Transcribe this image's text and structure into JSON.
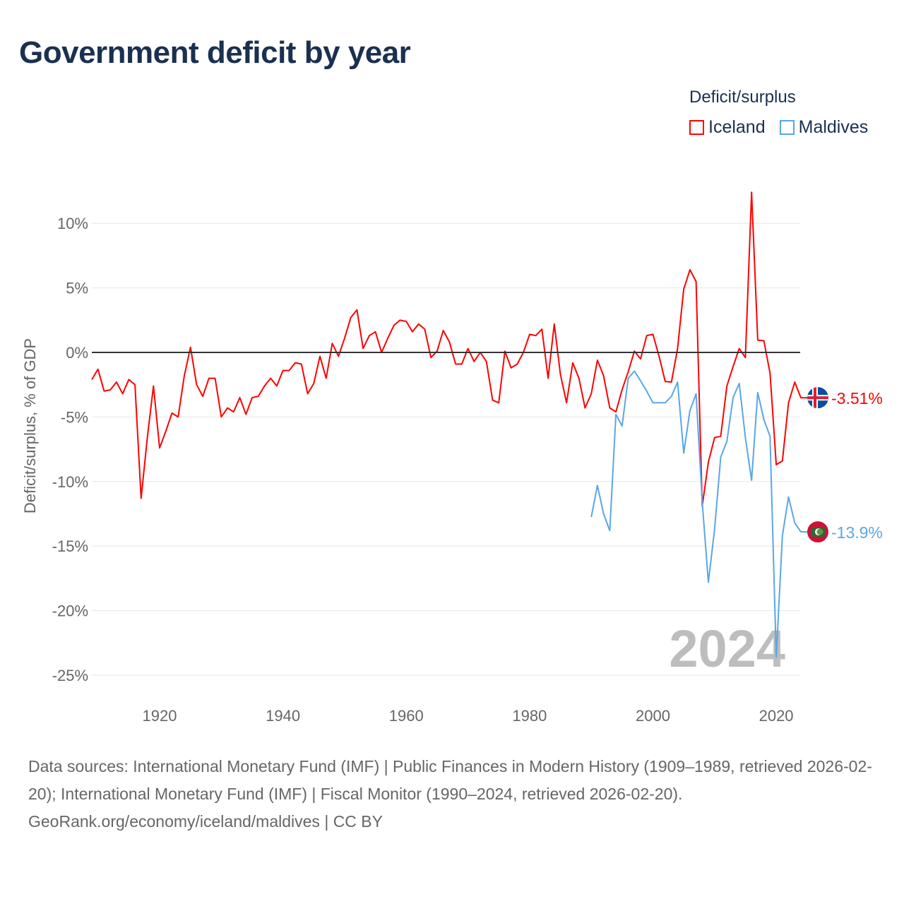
{
  "title": "Government deficit by year",
  "legend": {
    "title": "Deficit/surplus",
    "items": [
      {
        "label": "Iceland",
        "color": "#ff0000"
      },
      {
        "label": "Maldives",
        "color": "#5aa6e8"
      }
    ]
  },
  "footer": {
    "sources": "Data sources: International Monetary Fund (IMF) | Public Finances in Modern History (1909–1989, retrieved 2026-02-20); International Monetary Fund (IMF) | Fiscal Monitor (1990–2024, retrieved 2026-02-20).",
    "credit": "GeoRank.org/economy/iceland/maldives | CC BY"
  },
  "chart_data": {
    "type": "line",
    "title": "Government deficit by year",
    "ylabel": "Deficit/surplus, % of GDP",
    "xlabel": "",
    "xlim": [
      1909,
      2024
    ],
    "ylim": [
      -25,
      12.5
    ],
    "xticks": [
      1920,
      1940,
      1960,
      1980,
      2000,
      2020
    ],
    "yticks": [
      10,
      5,
      0,
      -5,
      -10,
      -15,
      -20,
      -25
    ],
    "ytick_labels": [
      "10%",
      "5%",
      "0%",
      "-5%",
      "-10%",
      "-15%",
      "-20%",
      "-25%"
    ],
    "grid": true,
    "legend_position": "top-right",
    "year_watermark": "2024",
    "series": [
      {
        "name": "Iceland",
        "color": "#ff0000",
        "end_label": "-3.51%",
        "start_year": 1909,
        "values": [
          -2.1,
          -1.3,
          -3.0,
          -2.9,
          -2.3,
          -3.2,
          -2.1,
          -2.5,
          -11.3,
          -6.6,
          -2.6,
          -7.4,
          -6.1,
          -4.7,
          -5.0,
          -1.8,
          0.4,
          -2.5,
          -3.4,
          -2.0,
          -2.0,
          -5.0,
          -4.3,
          -4.6,
          -3.5,
          -4.8,
          -3.5,
          -3.4,
          -2.6,
          -2.0,
          -2.6,
          -1.4,
          -1.4,
          -0.8,
          -0.9,
          -3.2,
          -2.4,
          -0.3,
          -2.0,
          0.7,
          -0.3,
          1.1,
          2.7,
          3.3,
          0.3,
          1.3,
          1.6,
          0.0,
          1.1,
          2.1,
          2.5,
          2.4,
          1.6,
          2.2,
          1.8,
          -0.4,
          0.1,
          1.7,
          0.8,
          -0.9,
          -0.9,
          0.3,
          -0.7,
          0.0,
          -0.7,
          -3.7,
          -3.9,
          0.1,
          -1.2,
          -0.9,
          0.0,
          1.4,
          1.3,
          1.8,
          -2.0,
          2.2,
          -1.7,
          -3.9,
          -0.8,
          -2.0,
          -4.3,
          -3.2,
          -0.6,
          -1.8,
          -4.3,
          -4.6,
          -2.9,
          -1.5,
          0.1,
          -0.5,
          1.3,
          1.4,
          -0.3,
          -2.25,
          -2.3,
          0.3,
          4.9,
          6.4,
          5.5,
          -11.9,
          -8.5,
          -6.6,
          -6.5,
          -2.6,
          -1.1,
          0.3,
          -0.4,
          12.4,
          0.95,
          0.9,
          -1.6,
          -8.7,
          -8.4,
          -3.9,
          -2.3,
          -3.51
        ]
      },
      {
        "name": "Maldives",
        "color": "#5aa6e8",
        "end_label": "-13.9%",
        "start_year": 1990,
        "values": [
          -12.75,
          -10.3,
          -12.5,
          -13.8,
          -4.8,
          -5.7,
          -2.0,
          -1.45,
          -2.2,
          -3.0,
          -3.9,
          -3.9,
          -3.9,
          -3.4,
          -2.3,
          -7.8,
          -4.5,
          -3.2,
          -11.6,
          -17.8,
          -13.7,
          -8.1,
          -6.9,
          -3.5,
          -2.4,
          -6.6,
          -9.9,
          -3.1,
          -5.2,
          -6.5,
          -23.6,
          -14.2,
          -11.2,
          -13.2,
          -13.9
        ]
      }
    ]
  }
}
